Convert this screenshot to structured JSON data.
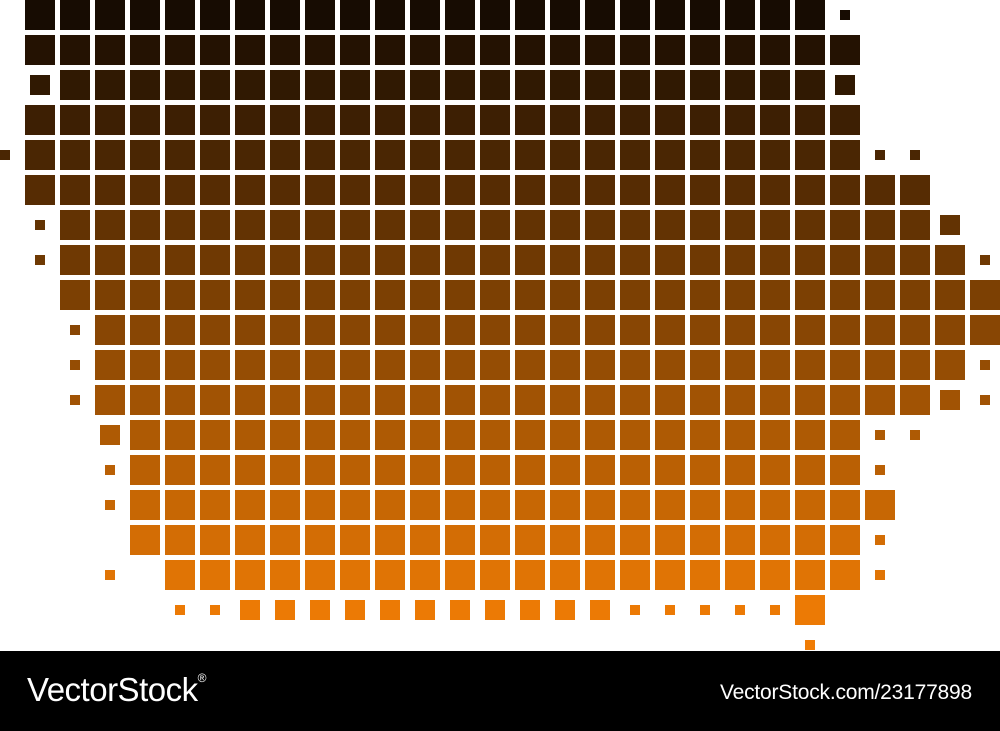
{
  "map": {
    "region": "Iowa",
    "style": "square pixel map",
    "colors": {
      "top": "#120902",
      "bottom": "#f07c05",
      "background": "#ffffff"
    }
  },
  "footer": {
    "brand": "VectorStock",
    "brand_mark": "®",
    "image_id": "VectorStock.com/23177898",
    "background": "#000000",
    "text_color": "#ffffff"
  }
}
